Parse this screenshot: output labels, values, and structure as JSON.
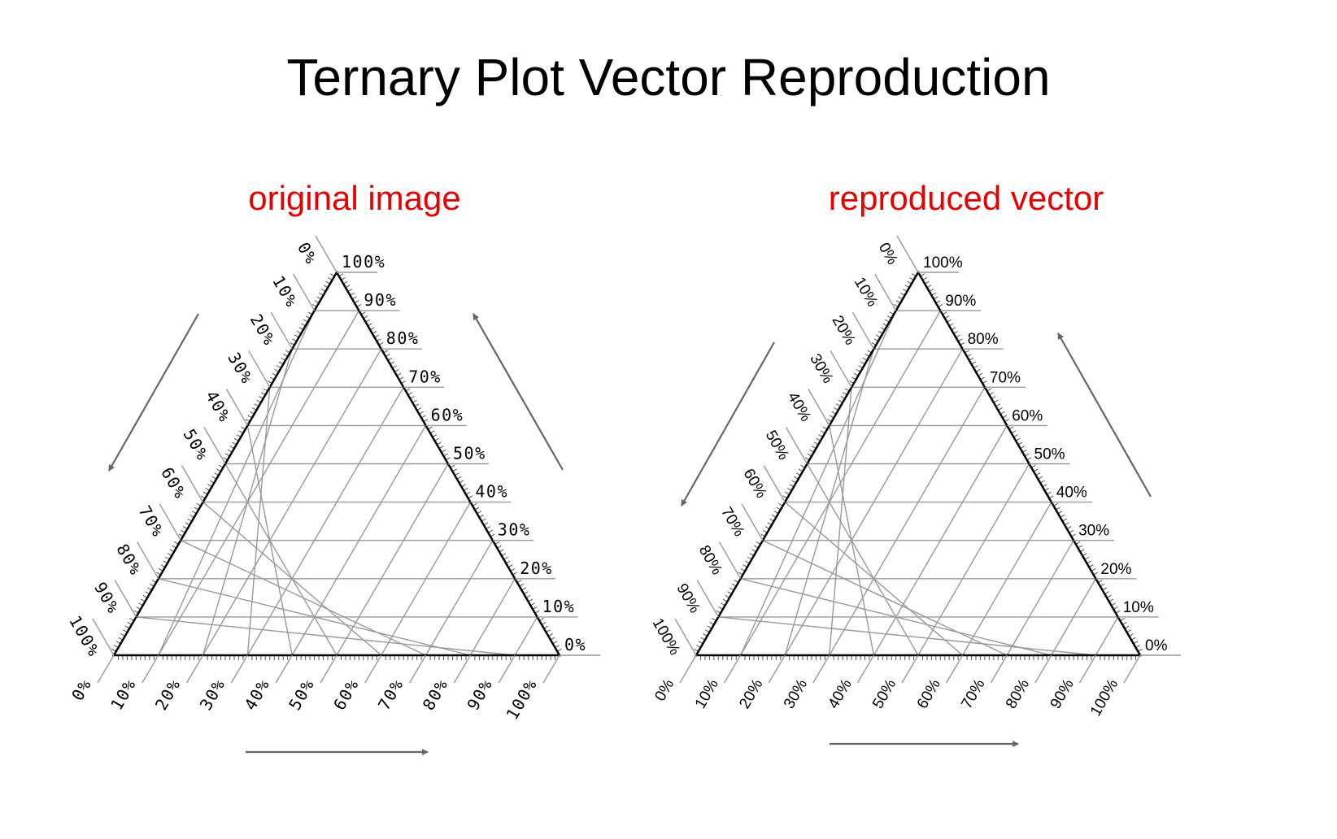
{
  "title": "Ternary Plot Vector Reproduction",
  "subtitles": {
    "left": "original image",
    "right": "reproduced vector",
    "color": "#e60000"
  },
  "axis_labels": [
    "0%",
    "10%",
    "20%",
    "30%",
    "40%",
    "50%",
    "60%",
    "70%",
    "80%",
    "90%",
    "100%"
  ],
  "colors": {
    "grid": "#999999",
    "frame": "#000000",
    "arrow": "#666666"
  }
}
